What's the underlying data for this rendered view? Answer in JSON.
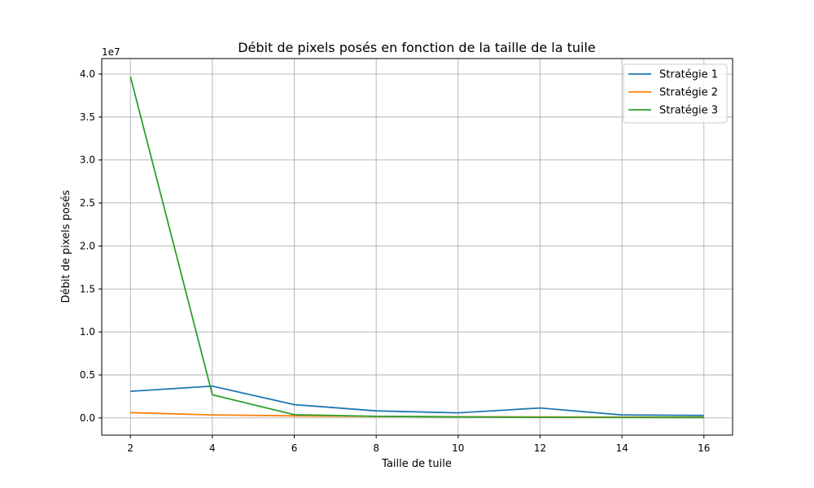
{
  "chart_data": {
    "type": "line",
    "title": "Débit de pixels posés en fonction de la taille de la tuile",
    "xlabel": "Taille de tuile",
    "ylabel": "Débit de pixels posés",
    "y_offset_label": "1e7",
    "x": [
      2,
      4,
      6,
      8,
      10,
      12,
      14,
      16
    ],
    "xlim": [
      1.3,
      16.7
    ],
    "ylim": [
      -2000000,
      41800000
    ],
    "x_ticks": [
      2,
      4,
      6,
      8,
      10,
      12,
      14,
      16
    ],
    "y_ticks": [
      0,
      5000000,
      10000000,
      15000000,
      20000000,
      25000000,
      30000000,
      35000000,
      40000000
    ],
    "y_tick_labels": [
      "0.0",
      "0.5",
      "1.0",
      "1.5",
      "2.0",
      "2.5",
      "3.0",
      "3.5",
      "4.0"
    ],
    "grid": true,
    "legend_position": "top-right",
    "series": [
      {
        "name": "Stratégie 1",
        "color": "#1f77b4",
        "values": [
          3100000,
          3700000,
          1550000,
          820000,
          590000,
          1160000,
          350000,
          290000
        ]
      },
      {
        "name": "Stratégie 2",
        "color": "#ff7f0e",
        "values": [
          620000,
          350000,
          240000,
          180000,
          140000,
          120000,
          100000,
          90000
        ]
      },
      {
        "name": "Stratégie 3",
        "color": "#2ca02c",
        "values": [
          39700000,
          2700000,
          380000,
          190000,
          120000,
          70000,
          60000,
          50000
        ]
      }
    ]
  }
}
